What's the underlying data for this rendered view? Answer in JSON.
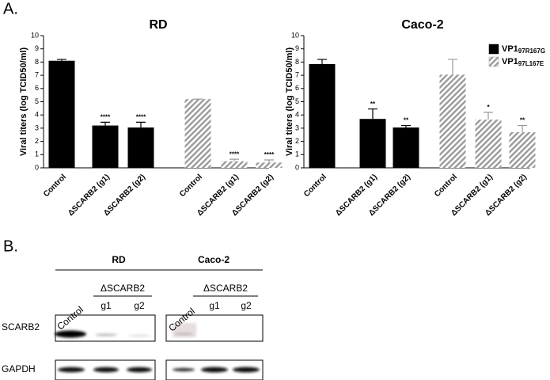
{
  "panel_label": "A.",
  "chart_data": [
    {
      "type": "bar",
      "title": "RD",
      "y_label": "Viral titers (log TCID50/ml)",
      "categories": [
        "Control",
        "ΔSCARB2 (g1)",
        "ΔSCARB2 (g2)"
      ],
      "ylim": [
        0,
        10
      ],
      "yticks": [
        0,
        1,
        2,
        3,
        4,
        5,
        6,
        7,
        8,
        9,
        10
      ],
      "series": [
        {
          "color": "#000000",
          "pattern": "solid",
          "values": [
            8.1,
            3.2,
            3.05
          ],
          "errors": [
            0.1,
            0.25,
            0.4
          ],
          "annotations": [
            null,
            "****",
            "****"
          ]
        },
        {
          "color": "#9a9a9a",
          "pattern": "hatch",
          "values": [
            5.2,
            0.5,
            0.4
          ],
          "errors": [
            0,
            0.15,
            0.2
          ],
          "annotations": [
            null,
            "****",
            "****"
          ]
        }
      ]
    },
    {
      "type": "bar",
      "title": "Caco-2",
      "y_label": "Viral titers (log TCID50/ml)",
      "categories": [
        "Control",
        "ΔSCARB2 (g1)",
        "ΔSCARB2 (g2)"
      ],
      "ylim": [
        0,
        10
      ],
      "yticks": [
        0,
        1,
        2,
        3,
        4,
        5,
        6,
        7,
        8,
        9,
        10
      ],
      "legend": "upper right",
      "series": [
        {
          "name": "VP1",
          "name_subscript": "97R167G",
          "color": "#000000",
          "pattern": "solid",
          "values": [
            7.85,
            3.7,
            3.05
          ],
          "errors": [
            0.35,
            0.75,
            0.15
          ],
          "annotations": [
            null,
            "**",
            "**"
          ]
        },
        {
          "name": "VP1",
          "name_subscript": "97L167E",
          "color": "#9a9a9a",
          "pattern": "hatch",
          "values": [
            7.05,
            3.65,
            2.7
          ],
          "errors": [
            1.15,
            0.55,
            0.5
          ],
          "annotations": [
            null,
            "*",
            "**"
          ]
        }
      ]
    }
  ],
  "panel_b": {
    "label": "B.",
    "blots": [
      {
        "cell_line": "RD",
        "group_label": "ΔSCARB2",
        "lanes": [
          "Control",
          "g1",
          "g2"
        ]
      },
      {
        "cell_line": "Caco-2",
        "group_label": "ΔSCARB2",
        "lanes": [
          "Control",
          "g1",
          "g2"
        ]
      }
    ],
    "rows": [
      "SCARB2",
      "GAPDH"
    ]
  }
}
